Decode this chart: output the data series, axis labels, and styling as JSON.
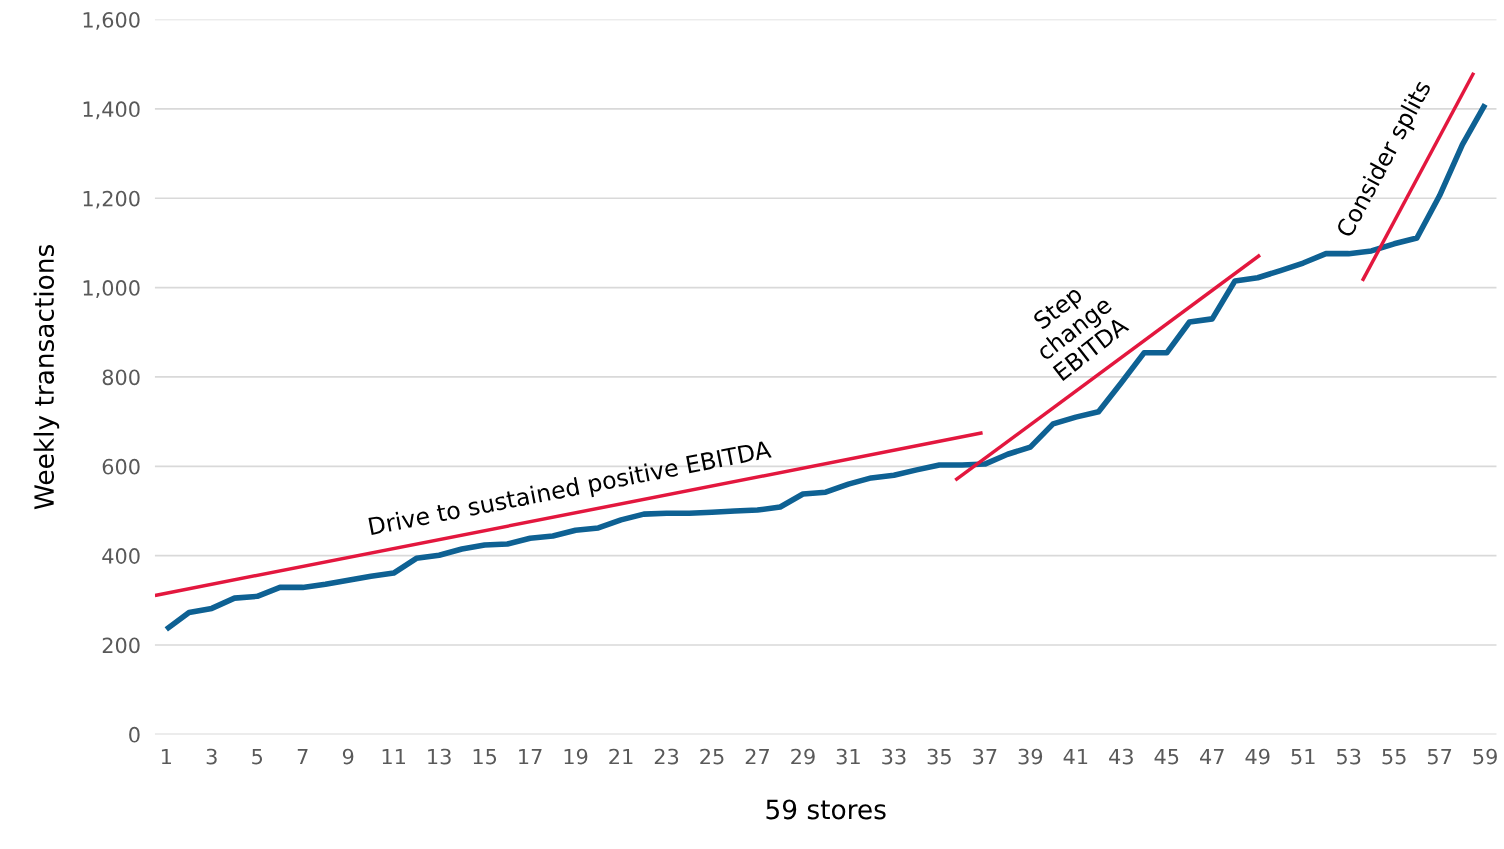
{
  "chart_data": {
    "type": "line",
    "xlabel": "59 stores",
    "ylabel": "Weekly transactions",
    "xlim": [
      0.5,
      59.5
    ],
    "xticks": [
      1,
      3,
      5,
      7,
      9,
      11,
      13,
      15,
      17,
      19,
      21,
      23,
      25,
      27,
      29,
      31,
      33,
      35,
      37,
      39,
      41,
      43,
      45,
      47,
      49,
      51,
      53,
      55,
      57,
      59
    ],
    "ylim": [
      0,
      1600
    ],
    "yticks": [
      0,
      200,
      400,
      600,
      800,
      {
        "value": 1000,
        "label": "1,000"
      },
      {
        "value": 1200,
        "label": "1,200"
      },
      {
        "value": 1400,
        "label": "1,400"
      },
      {
        "value": 1600,
        "label": "1,600"
      }
    ],
    "grid": "y",
    "legend": false,
    "marker": "none",
    "line_style": "solid",
    "series": [
      {
        "color": "#0e6193",
        "x": [
          1,
          2,
          3,
          4,
          5,
          6,
          7,
          8,
          9,
          10,
          11,
          12,
          13,
          14,
          15,
          16,
          17,
          18,
          19,
          20,
          21,
          22,
          23,
          24,
          25,
          26,
          27,
          28,
          29,
          30,
          31,
          32,
          33,
          34,
          35,
          36,
          37,
          38,
          39,
          40,
          41,
          42,
          43,
          44,
          45,
          46,
          47,
          48,
          49,
          50,
          51,
          52,
          53,
          54,
          55,
          56,
          57,
          58,
          59
        ],
        "values": [
          235,
          273,
          282,
          305,
          309,
          329,
          329,
          336,
          345,
          354,
          361,
          394,
          401,
          415,
          424,
          426,
          439,
          444,
          457,
          462,
          480,
          493,
          495,
          495,
          497,
          500,
          502,
          509,
          538,
          542,
          560,
          574,
          580,
          592,
          603,
          603,
          605,
          627,
          643,
          695,
          710,
          722,
          787,
          854,
          854,
          923,
          930,
          1015,
          1022,
          1038,
          1055,
          1076,
          1076,
          1082,
          1098,
          1111,
          1206,
          1320,
          1410
        ]
      },
      {
        "color": "#e3173e",
        "x": [
          0.5,
          36.9
        ],
        "values": [
          311,
          675
        ]
      },
      {
        "color": "#e3173e",
        "x": [
          35.7,
          49.1
        ],
        "values": [
          569,
          1073
        ]
      },
      {
        "color": "#e3173e",
        "x": [
          53.6,
          58.5
        ],
        "values": [
          1015,
          1481
        ]
      }
    ],
    "annotations": [
      "Drive to sustained positive EBITDA",
      "Step\nchange\nEBITDA",
      "Consider splits"
    ]
  }
}
